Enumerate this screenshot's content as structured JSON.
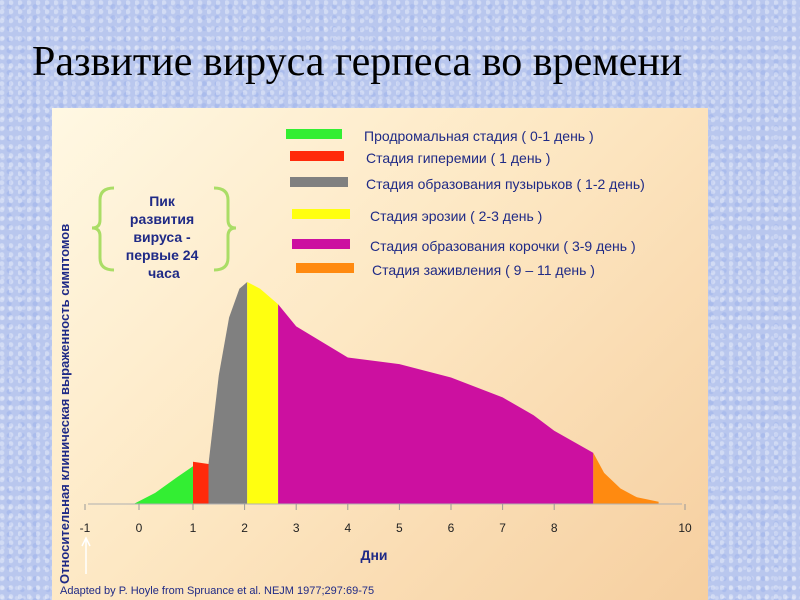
{
  "slide": {
    "title": "Развитие вируса герпеса во времени"
  },
  "chart_data": {
    "type": "area",
    "xlabel": "Дни",
    "ylabel": "Относительная клиническая выраженность симптомов",
    "xticks": [
      "-1",
      "0",
      "1",
      "2",
      "3",
      "4",
      "5",
      "6",
      "7",
      "8",
      "10"
    ],
    "xlim": [
      -1,
      10
    ],
    "ylim": [
      0,
      1
    ],
    "grid": false,
    "legend_position": "top-right",
    "series": [
      {
        "name": "Продромальная стадия ( 0-1 день )",
        "color": "#33ee33",
        "x": [
          -0.1,
          0.3,
          0.7,
          1.0
        ],
        "y": [
          0.0,
          0.05,
          0.12,
          0.17
        ]
      },
      {
        "name": "Стадия гиперемии ( 1 день )",
        "color": "#ff2a0a",
        "x": [
          1.0,
          1.3
        ],
        "y": [
          0.19,
          0.18
        ]
      },
      {
        "name": "Стадия образования пузырьков ( 1-2 день)",
        "color": "#808080",
        "x": [
          1.3,
          1.5,
          1.7,
          1.9,
          2.05
        ],
        "y": [
          0.18,
          0.58,
          0.84,
          0.97,
          1.0
        ]
      },
      {
        "name": "Стадия эрозии ( 2-3 день )",
        "color": "#ffff10",
        "x": [
          2.05,
          2.3,
          2.65
        ],
        "y": [
          1.0,
          0.97,
          0.9
        ]
      },
      {
        "name": "Стадия образования корочки ( 3-9 день )",
        "color": "#cc10a0",
        "x": [
          2.65,
          3.0,
          4.0,
          5.0,
          6.0,
          7.0,
          7.6,
          8.0,
          8.5
        ],
        "y": [
          0.9,
          0.8,
          0.66,
          0.63,
          0.57,
          0.48,
          0.4,
          0.33,
          0.23
        ]
      },
      {
        "name": "Стадия заживления ( 9 – 11 день )",
        "color": "#ff8a10",
        "x": [
          8.5,
          8.7,
          9.0,
          9.3,
          9.7
        ],
        "y": [
          0.23,
          0.14,
          0.07,
          0.03,
          0.01
        ]
      }
    ],
    "annotation": {
      "lines": [
        "Пик",
        "развития",
        "вируса  -",
        "первые 24",
        "часа"
      ],
      "brace_color": "#aadd66"
    },
    "source": "Adapted by P. Hoyle from Spruance et al. NEJM 1977;297:69-75"
  }
}
